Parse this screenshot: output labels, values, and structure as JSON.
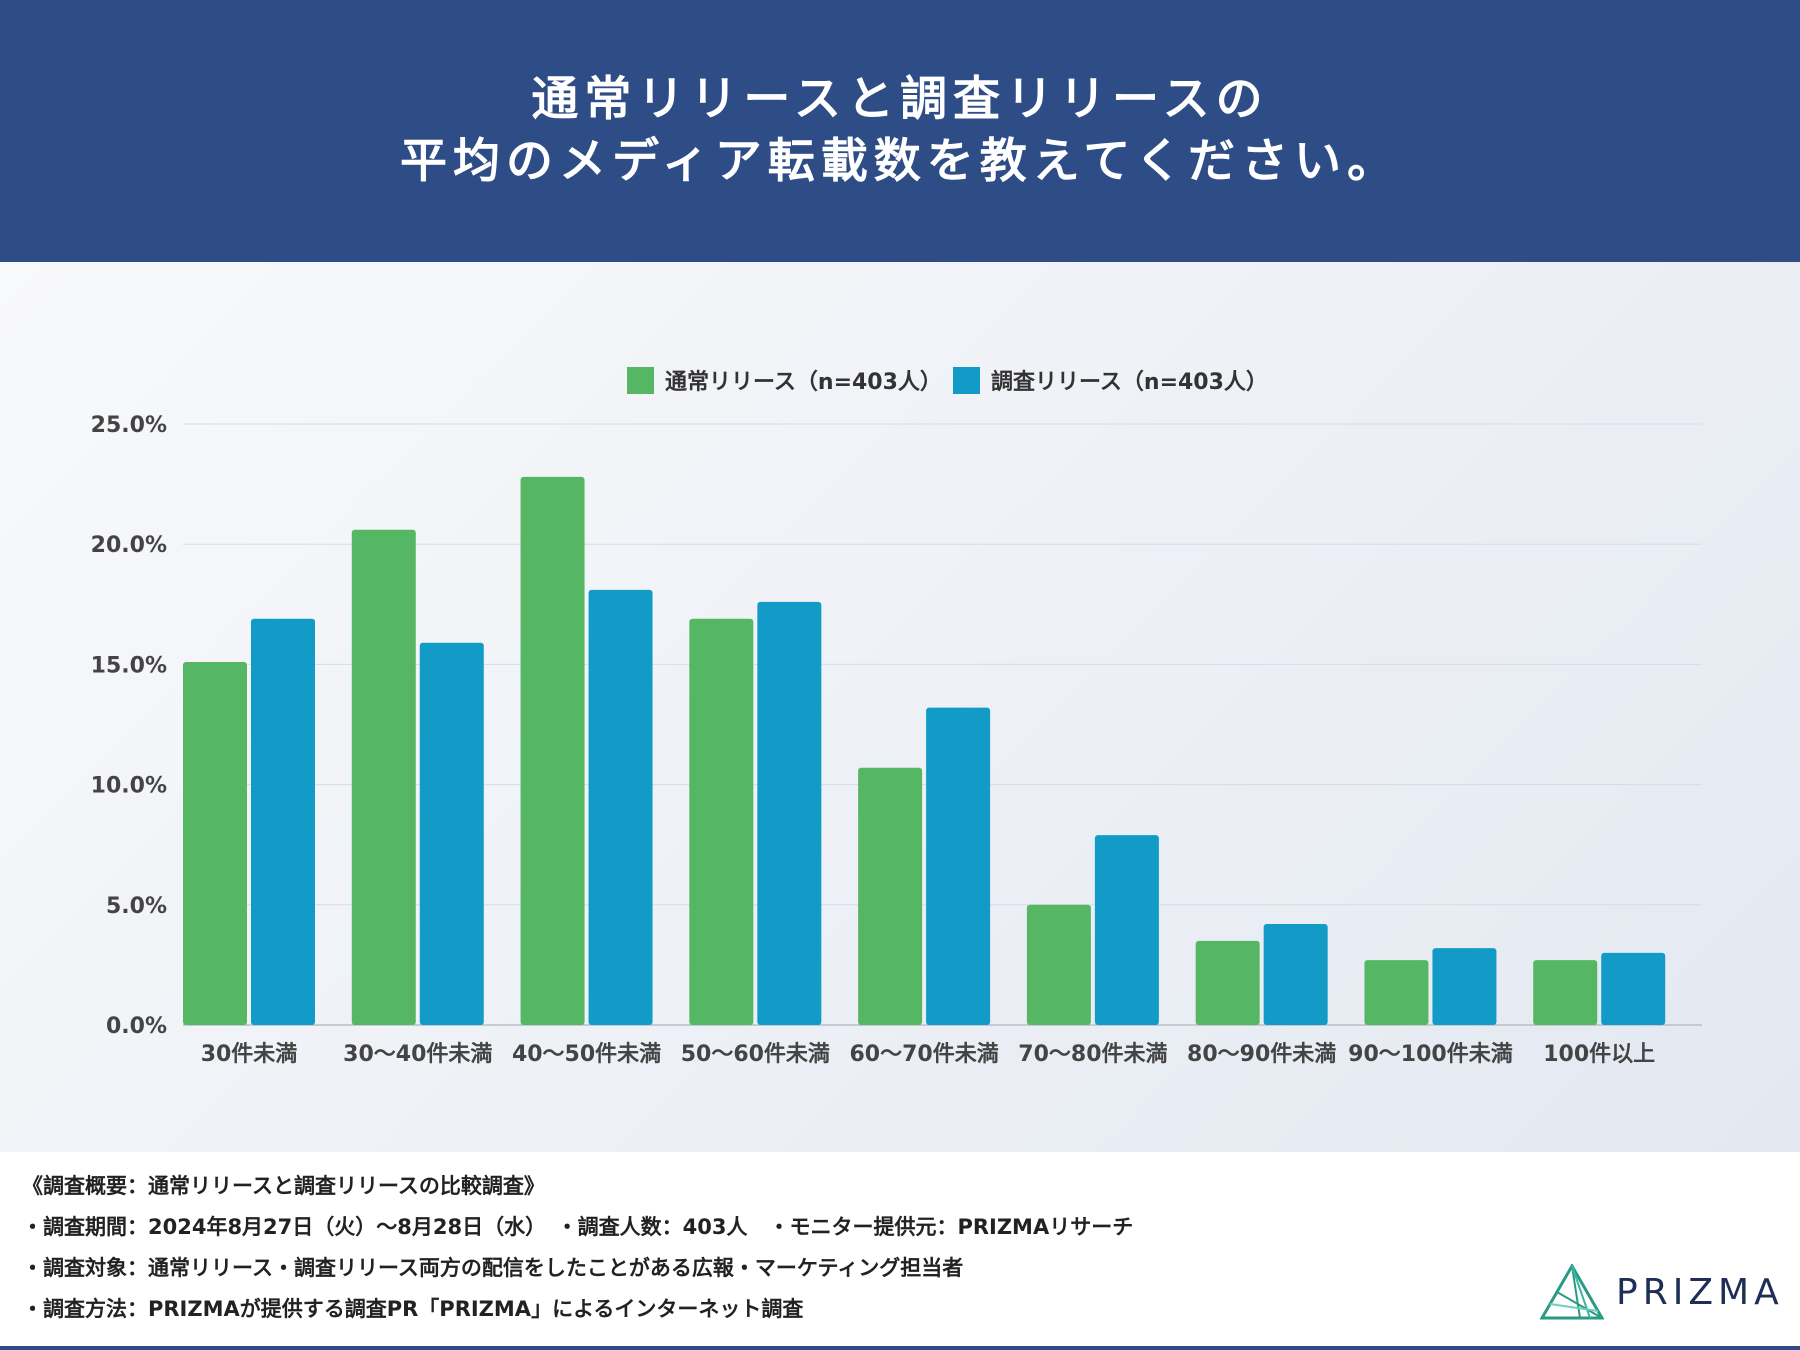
{
  "header": {
    "title_line1": "通常リリースと調査リリースの",
    "title_line2": "平均のメディア転載数を教えてください。"
  },
  "chart_data": {
    "type": "bar",
    "title": "通常リリースと調査リリースの 平均のメディア転載数を教えてください。",
    "categories": [
      "30件未満",
      "30〜40件未満",
      "40〜50件未満",
      "50〜60件未満",
      "60〜70件未満",
      "70〜80件未満",
      "80〜90件未満",
      "90〜100件未満",
      "100件以上"
    ],
    "series": [
      {
        "name": "通常リリース（n=403人）",
        "color": "#55b764",
        "values": [
          15.1,
          20.6,
          22.8,
          16.9,
          10.7,
          5.0,
          3.5,
          2.7,
          2.7
        ]
      },
      {
        "name": "調査リリース（n=403人）",
        "color": "#139bc8",
        "values": [
          16.9,
          15.9,
          18.1,
          17.6,
          13.2,
          7.9,
          4.2,
          3.2,
          3.0
        ]
      }
    ],
    "y_ticks": [
      "0.0%",
      "5.0%",
      "10.0%",
      "15.0%",
      "20.0%",
      "25.0%"
    ],
    "ylim": [
      0,
      25
    ],
    "grid": true,
    "legend_position": "top-center",
    "xlabel": "",
    "ylabel": ""
  },
  "footer": {
    "notes": [
      "《調査概要：通常リリースと調査リリースの比較調査》",
      "・調査期間：2024年8月27日（火）〜8月28日（水）　・調査人数：403人　・モニター提供元：PRIZMAリサーチ",
      "・調査対象：通常リリース・調査リリース両方の配信をしたことがある広報・マーケティング担当者",
      "・調査方法：PRIZMAが提供する調査PR「PRIZMA」によるインターネット調査"
    ],
    "logo_text": "PRIZMA"
  }
}
